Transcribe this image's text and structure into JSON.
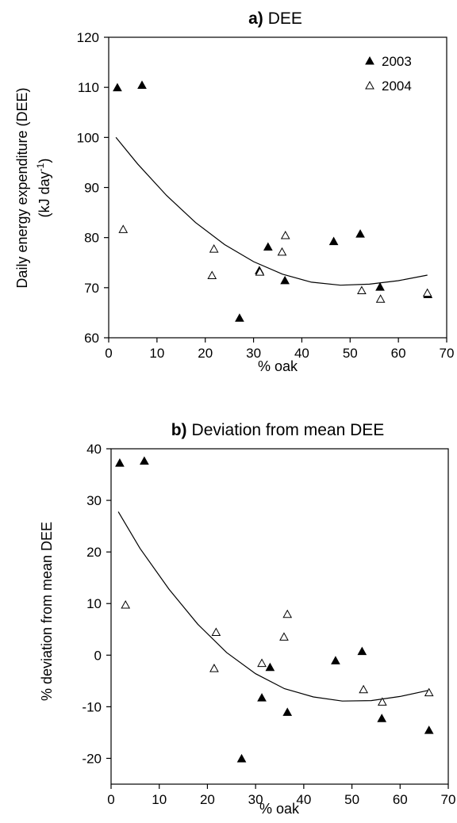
{
  "chart_data": [
    {
      "type": "scatter",
      "title_prefix": "a)",
      "title": "DEE",
      "xlabel": "% oak",
      "ylabel_line1": "Daily energy expenditure (DEE)",
      "ylabel_line2_pre": "(kJ day",
      "ylabel_line2_sup": "-1",
      "ylabel_line2_post": ")",
      "xlim": [
        0,
        70
      ],
      "ylim": [
        60,
        120
      ],
      "xticks": [
        "0",
        "10",
        "20",
        "30",
        "40",
        "50",
        "60",
        "70"
      ],
      "yticks": [
        "60",
        "70",
        "80",
        "90",
        "100",
        "110",
        "120"
      ],
      "legend_position": "top-right",
      "grid": false,
      "series": [
        {
          "name": "2003",
          "marker": "filled-triangle",
          "points": [
            [
              1.8,
              110
            ],
            [
              6.9,
              110.5
            ],
            [
              27.1,
              64
            ],
            [
              31.2,
              73.5
            ],
            [
              33,
              78.2
            ],
            [
              36.5,
              71.5
            ],
            [
              46.6,
              79.3
            ],
            [
              52.1,
              80.8
            ],
            [
              56.2,
              70.2
            ],
            [
              66.1,
              68.7
            ]
          ]
        },
        {
          "name": "2004",
          "marker": "open-triangle",
          "points": [
            [
              3,
              81.7
            ],
            [
              21.4,
              72.5
            ],
            [
              21.8,
              77.8
            ],
            [
              31.3,
              73.2
            ],
            [
              35.9,
              77.2
            ],
            [
              36.6,
              80.5
            ],
            [
              52.4,
              69.5
            ],
            [
              56.3,
              67.8
            ],
            [
              66,
              69
            ]
          ]
        }
      ],
      "fit_curve": {
        "type": "quadratic",
        "x": [
          1.5,
          6,
          12,
          18,
          24,
          30,
          36,
          42,
          48,
          54,
          60,
          66
        ],
        "y": [
          100,
          94.7,
          88.4,
          83.0,
          78.6,
          75.2,
          72.7,
          71.1,
          70.5,
          70.7,
          71.4,
          72.5
        ]
      }
    },
    {
      "type": "scatter",
      "title_prefix": "b)",
      "title": "Deviation from mean DEE",
      "xlabel": "% oak",
      "ylabel": "% deviation from mean DEE",
      "xlim": [
        0,
        70
      ],
      "ylim": [
        -25,
        40
      ],
      "xticks": [
        "0",
        "10",
        "20",
        "30",
        "40",
        "50",
        "60",
        "70"
      ],
      "yticks": [
        "-20",
        "-10",
        "0",
        "10",
        "20",
        "30",
        "40"
      ],
      "grid": false,
      "series": [
        {
          "name": "2003",
          "marker": "filled-triangle",
          "points": [
            [
              1.8,
              37.3
            ],
            [
              6.9,
              37.7
            ],
            [
              27.1,
              -20
            ],
            [
              31.3,
              -8.2
            ],
            [
              33,
              -2.3
            ],
            [
              36.6,
              -11
            ],
            [
              46.6,
              -1
            ],
            [
              52.1,
              0.8
            ],
            [
              56.2,
              -12.2
            ],
            [
              66,
              -14.5
            ]
          ]
        },
        {
          "name": "2004",
          "marker": "open-triangle",
          "points": [
            [
              3,
              9.8
            ],
            [
              21.4,
              -2.5
            ],
            [
              21.8,
              4.5
            ],
            [
              31.3,
              -1.5
            ],
            [
              35.9,
              3.6
            ],
            [
              36.6,
              8
            ],
            [
              52.4,
              -6.6
            ],
            [
              56.3,
              -9
            ],
            [
              66,
              -7.2
            ]
          ]
        }
      ],
      "fit_curve": {
        "type": "quadratic",
        "x": [
          1.5,
          6,
          12,
          18,
          24,
          30,
          36,
          42,
          48,
          54,
          60,
          66
        ],
        "y": [
          27.8,
          20.7,
          12.8,
          6.0,
          0.5,
          -3.6,
          -6.5,
          -8.1,
          -8.9,
          -8.8,
          -8.0,
          -6.8
        ]
      }
    }
  ]
}
